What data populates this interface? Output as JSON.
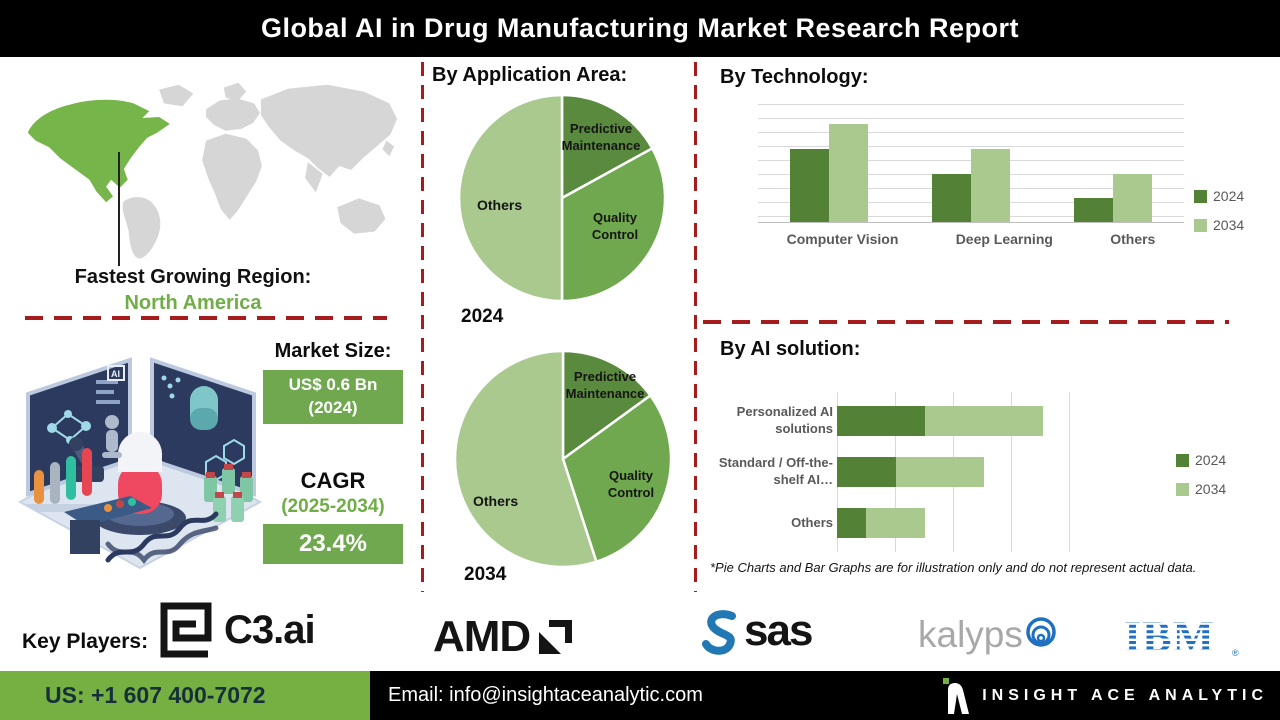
{
  "banner": {
    "title": "Global AI in Drug Manufacturing Market Research Report"
  },
  "region": {
    "label": "Fastest Growing Region:",
    "value": "North America"
  },
  "map": {
    "highlighted_region": "North America"
  },
  "market": {
    "size_label": "Market Size:",
    "size_value_line1": "US$ 0.6 Bn",
    "size_value_line2": "(2024)",
    "cagr_label": "CAGR",
    "cagr_period": "(2025-2034)",
    "cagr_value": "23.4%"
  },
  "chart_data": [
    {
      "type": "pie",
      "title": "By Application Area:",
      "year": "2024",
      "labels": [
        "Predictive Maintenance",
        "Quality Control",
        "Others"
      ],
      "values": [
        17,
        33,
        50
      ],
      "colors": [
        "#5a8a3e",
        "#6fa84e",
        "#a9c98f"
      ],
      "note": "illustrative"
    },
    {
      "type": "pie",
      "title": "By Application Area:",
      "year": "2034",
      "labels": [
        "Predictive Maintenance",
        "Quality Control",
        "Others"
      ],
      "values": [
        15,
        30,
        55
      ],
      "colors": [
        "#5a8a3e",
        "#6fa84e",
        "#a9c98f"
      ],
      "note": "illustrative"
    },
    {
      "type": "bar",
      "title": "By  Technology:",
      "categories": [
        "Computer Vision",
        "Deep Learning",
        "Others"
      ],
      "series": [
        {
          "name": "2024",
          "values": [
            5.6,
            3.7,
            1.85
          ],
          "color": "#538135"
        },
        {
          "name": "2034",
          "values": [
            7.5,
            5.6,
            3.7
          ],
          "color": "#a9c98f"
        }
      ],
      "ylim": [
        0,
        9
      ],
      "grid": true,
      "legend_position": "right"
    },
    {
      "type": "stacked-hbar",
      "title": "By AI solution:",
      "categories": [
        "Personalized AI solutions",
        "Standard / Off-the-shelf AI…",
        "Others"
      ],
      "series": [
        {
          "name": "2024",
          "values": [
            1.5,
            1.0,
            0.5
          ],
          "color": "#538135"
        },
        {
          "name": "2034",
          "values": [
            2.0,
            1.5,
            1.0
          ],
          "color": "#a9c98f"
        }
      ],
      "xlim": [
        0,
        4.25
      ],
      "grid": true,
      "legend_position": "right"
    }
  ],
  "disclaimer": "*Pie Charts and Bar Graphs are for illustration only and do not represent actual data.",
  "key_players": {
    "label": "Key Players:",
    "companies": [
      "C3.ai",
      "AMD",
      "sas",
      "Kalypso",
      "IBM"
    ],
    "kalypso_text": "kalyps"
  },
  "footer": {
    "phone": "US: +1 607 400-7072",
    "email": "Email: info@insightaceanalytic.com",
    "brand": "INSIGHT ACE ANALYTIC"
  },
  "colors": {
    "accent_green": "#6fa84f",
    "dark_series_green": "#538135",
    "light_series_green": "#a9c98f",
    "map_green": "#76b54a",
    "footer_green": "#76b043",
    "dashed_red": "#a61c1c",
    "text_green": "#70ad47"
  }
}
